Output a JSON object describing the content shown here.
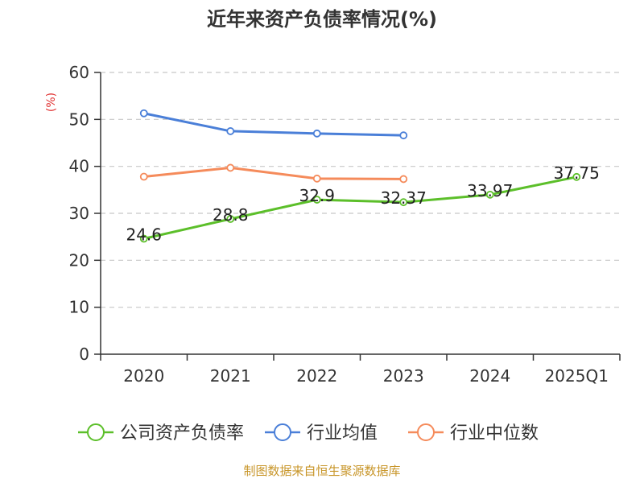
{
  "chart_data": {
    "type": "line",
    "title": "近年来资产负债率情况(%)",
    "ylabel": "(%)",
    "xlabel": "",
    "ylim": [
      0,
      60
    ],
    "yticks": [
      0,
      10,
      20,
      30,
      40,
      50,
      60
    ],
    "categories": [
      "2020",
      "2021",
      "2022",
      "2023",
      "2024",
      "2025Q1"
    ],
    "grid": true,
    "legend_position": "bottom",
    "series": [
      {
        "name": "公司资产负债率",
        "color": "#5cbf2a",
        "values": [
          24.6,
          28.8,
          32.9,
          32.37,
          33.97,
          37.75
        ],
        "labels": [
          "24.6",
          "28.8",
          "32.9",
          "32.37",
          "33.97",
          "37.75"
        ]
      },
      {
        "name": "行业均值",
        "color": "#4a7fd8",
        "values": [
          51.3,
          47.5,
          47.0,
          46.6,
          null,
          null
        ],
        "labels": []
      },
      {
        "name": "行业中位数",
        "color": "#f58b5b",
        "values": [
          37.8,
          39.7,
          37.4,
          37.3,
          null,
          null
        ],
        "labels": []
      }
    ],
    "source": "制图数据来自恒生聚源数据库"
  }
}
